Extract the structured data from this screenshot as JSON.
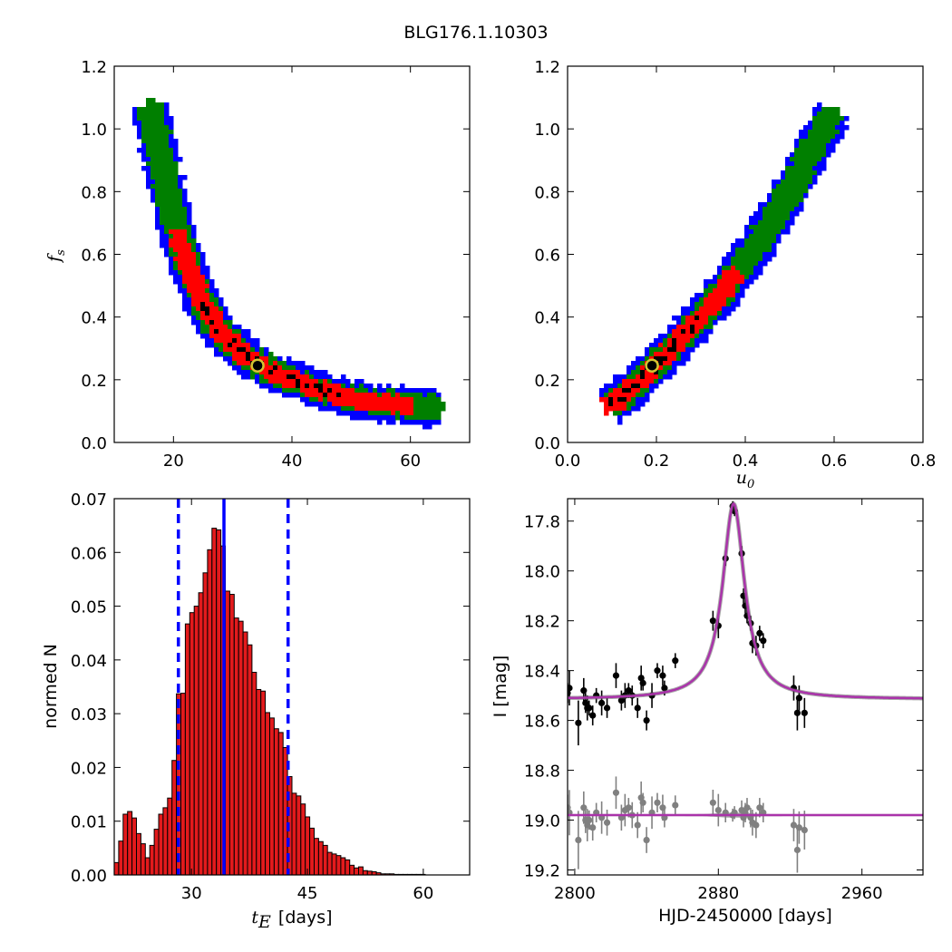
{
  "figure_title": "BLG176.1.10303",
  "colors": {
    "sigma3": "#0000ff",
    "sigma2": "#007f00",
    "sigma1": "#ff0000",
    "best": "#000000",
    "marker": "#d4c431",
    "model": "#aa33aa",
    "bars": "#e31a1c",
    "vline": "#0000ff",
    "residual": "#808080"
  },
  "chart_data": [
    {
      "type": "heatmap",
      "panel": "fs-vs-tE",
      "xlim": [
        10,
        70
      ],
      "ylim": [
        0.0,
        1.2
      ],
      "xticks": [
        "20",
        "40",
        "60"
      ],
      "yticks": [
        "0.0",
        "0.2",
        "0.4",
        "0.6",
        "0.8",
        "1.0",
        "1.2"
      ],
      "xlabel": "",
      "ylabel": "f",
      "ylabel_sub": "s",
      "regions_note": "confidence regions: blue (3σ), green (2σ), red (1σ), black (best)",
      "ridge": [
        [
          16,
          1.08
        ],
        [
          17,
          1.0
        ],
        [
          18,
          0.88
        ],
        [
          20,
          0.72
        ],
        [
          22,
          0.58
        ],
        [
          25,
          0.44
        ],
        [
          28,
          0.35
        ],
        [
          32,
          0.28
        ],
        [
          36,
          0.23
        ],
        [
          40,
          0.2
        ],
        [
          45,
          0.165
        ],
        [
          50,
          0.14
        ],
        [
          55,
          0.125
        ],
        [
          60,
          0.115
        ],
        [
          65,
          0.11
        ]
      ],
      "best_fit": {
        "x": 34.2,
        "y": 0.245
      }
    },
    {
      "type": "heatmap",
      "panel": "fs-vs-u0",
      "xlim": [
        0.0,
        0.8
      ],
      "ylim": [
        0.0,
        1.2
      ],
      "xticks": [
        "0.0",
        "0.2",
        "0.4",
        "0.6",
        "0.8"
      ],
      "yticks": [
        "0.0",
        "0.2",
        "0.4",
        "0.6",
        "0.8",
        "1.0",
        "1.2"
      ],
      "xlabel": "u",
      "xlabel_sub": "0",
      "ylabel": "",
      "ridge": [
        [
          0.09,
          0.11
        ],
        [
          0.15,
          0.18
        ],
        [
          0.2,
          0.25
        ],
        [
          0.25,
          0.32
        ],
        [
          0.3,
          0.4
        ],
        [
          0.35,
          0.48
        ],
        [
          0.4,
          0.58
        ],
        [
          0.45,
          0.68
        ],
        [
          0.5,
          0.8
        ],
        [
          0.55,
          0.93
        ],
        [
          0.6,
          1.06
        ]
      ],
      "best_fit": {
        "x": 0.19,
        "y": 0.245
      }
    },
    {
      "type": "bar",
      "panel": "tE-histogram",
      "xlim": [
        20,
        66
      ],
      "ylim": [
        0.0,
        0.07
      ],
      "xticks": [
        "30",
        "45",
        "60"
      ],
      "xtick_values": [
        30,
        45,
        60
      ],
      "yticks": [
        "0.00",
        "0.01",
        "0.02",
        "0.03",
        "0.04",
        "0.05",
        "0.06",
        "0.07"
      ],
      "xlabel": "t",
      "xlabel_sub": "E",
      "xlabel_suffix": "[days]",
      "ylabel": "normed N",
      "bin_start": 20,
      "bin_width": 0.575,
      "values": [
        0.0023,
        0.0063,
        0.0113,
        0.0118,
        0.0106,
        0.0077,
        0.0058,
        0.0032,
        0.0055,
        0.0085,
        0.0113,
        0.0125,
        0.0143,
        0.0213,
        0.0337,
        0.0338,
        0.0467,
        0.0488,
        0.05,
        0.0525,
        0.0562,
        0.0605,
        0.0645,
        0.0642,
        0.0612,
        0.0528,
        0.0522,
        0.0478,
        0.0472,
        0.0452,
        0.0428,
        0.0377,
        0.0345,
        0.0342,
        0.0302,
        0.0292,
        0.0272,
        0.0265,
        0.0237,
        0.0183,
        0.0152,
        0.0147,
        0.0132,
        0.0108,
        0.0087,
        0.0068,
        0.0062,
        0.0055,
        0.0042,
        0.0039,
        0.0036,
        0.0032,
        0.0028,
        0.0018,
        0.0013,
        0.0015,
        0.0008,
        0.0007,
        0.0006,
        0.0004,
        0.0002,
        0.0002,
        0.0002,
        0.0001,
        0.0001,
        0.0001,
        0.0001,
        0.0001,
        0.0001,
        0.0001
      ],
      "median": 34.2,
      "lower": 28.3,
      "upper": 42.5
    },
    {
      "type": "scatter",
      "panel": "light-curve",
      "xlim": [
        2796,
        2994
      ],
      "ylim": [
        19.22,
        17.71
      ],
      "xticks": [
        "2800",
        "2880",
        "2960"
      ],
      "xtick_values": [
        2800,
        2880,
        2960
      ],
      "yticks": [
        "17.8",
        "18.0",
        "18.2",
        "18.4",
        "18.6",
        "18.8",
        "19.0",
        "19.2"
      ],
      "ytick_values": [
        17.8,
        18.0,
        18.2,
        18.4,
        18.6,
        18.8,
        19.0,
        19.2
      ],
      "xlabel": "HJD-2450000 [days]",
      "ylabel": "I [mag]",
      "model": {
        "t0": 2888.5,
        "baseline": 18.515,
        "peak": 17.73,
        "half_width": 11.0,
        "residual_baseline": 18.98
      },
      "series": [
        {
          "values": [
            [
              2796,
              18.49
            ],
            [
              2797,
              18.47
            ],
            [
              2802,
              18.61
            ],
            [
              2805,
              18.48
            ],
            [
              2806,
              18.53
            ],
            [
              2807,
              18.55
            ],
            [
              2808,
              18.55
            ],
            [
              2810,
              18.58
            ],
            [
              2812,
              18.5
            ],
            [
              2815,
              18.53
            ],
            [
              2818,
              18.55
            ],
            [
              2823,
              18.42
            ],
            [
              2826,
              18.52
            ],
            [
              2828,
              18.5
            ],
            [
              2830,
              18.48
            ],
            [
              2832,
              18.5
            ],
            [
              2835,
              18.55
            ],
            [
              2837,
              18.43
            ],
            [
              2838,
              18.45
            ],
            [
              2840,
              18.6
            ],
            [
              2843,
              18.5
            ],
            [
              2846,
              18.4
            ],
            [
              2849,
              18.42
            ],
            [
              2850,
              18.47
            ],
            [
              2856,
              18.36
            ],
            [
              2877,
              18.2
            ],
            [
              2880,
              18.22
            ],
            [
              2884,
              17.95
            ],
            [
              2888,
              17.74
            ],
            [
              2889,
              17.76
            ],
            [
              2893,
              17.93
            ],
            [
              2894,
              18.1
            ],
            [
              2895,
              18.14
            ],
            [
              2896,
              18.18
            ],
            [
              2898,
              18.21
            ],
            [
              2899,
              18.29
            ],
            [
              2901,
              18.3
            ],
            [
              2903,
              18.25
            ],
            [
              2905,
              18.28
            ],
            [
              2922,
              18.47
            ],
            [
              2924,
              18.57
            ],
            [
              2925,
              18.51
            ],
            [
              2928,
              18.57
            ]
          ]
        },
        {
          "values": [
            [
              2796,
              18.95
            ],
            [
              2797,
              18.97
            ],
            [
              2802,
              19.08
            ],
            [
              2805,
              18.95
            ],
            [
              2806,
              19.0
            ],
            [
              2807,
              19.02
            ],
            [
              2808,
              19.0
            ],
            [
              2810,
              19.03
            ],
            [
              2812,
              18.97
            ],
            [
              2815,
              18.99
            ],
            [
              2818,
              19.01
            ],
            [
              2823,
              18.89
            ],
            [
              2826,
              18.99
            ],
            [
              2828,
              18.96
            ],
            [
              2830,
              18.95
            ],
            [
              2832,
              18.98
            ],
            [
              2835,
              19.02
            ],
            [
              2837,
              18.91
            ],
            [
              2838,
              18.93
            ],
            [
              2840,
              19.08
            ],
            [
              2843,
              18.97
            ],
            [
              2846,
              18.93
            ],
            [
              2849,
              18.95
            ],
            [
              2850,
              18.99
            ],
            [
              2856,
              18.94
            ],
            [
              2877,
              18.93
            ],
            [
              2880,
              18.96
            ],
            [
              2884,
              18.97
            ],
            [
              2888,
              18.98
            ],
            [
              2889,
              18.97
            ],
            [
              2893,
              18.96
            ],
            [
              2894,
              18.99
            ],
            [
              2895,
              18.97
            ],
            [
              2896,
              18.95
            ],
            [
              2898,
              18.99
            ],
            [
              2899,
              19.01
            ],
            [
              2901,
              19.02
            ],
            [
              2903,
              18.95
            ],
            [
              2905,
              18.97
            ],
            [
              2922,
              19.02
            ],
            [
              2924,
              19.12
            ],
            [
              2925,
              19.03
            ],
            [
              2928,
              19.04
            ]
          ]
        }
      ]
    }
  ]
}
